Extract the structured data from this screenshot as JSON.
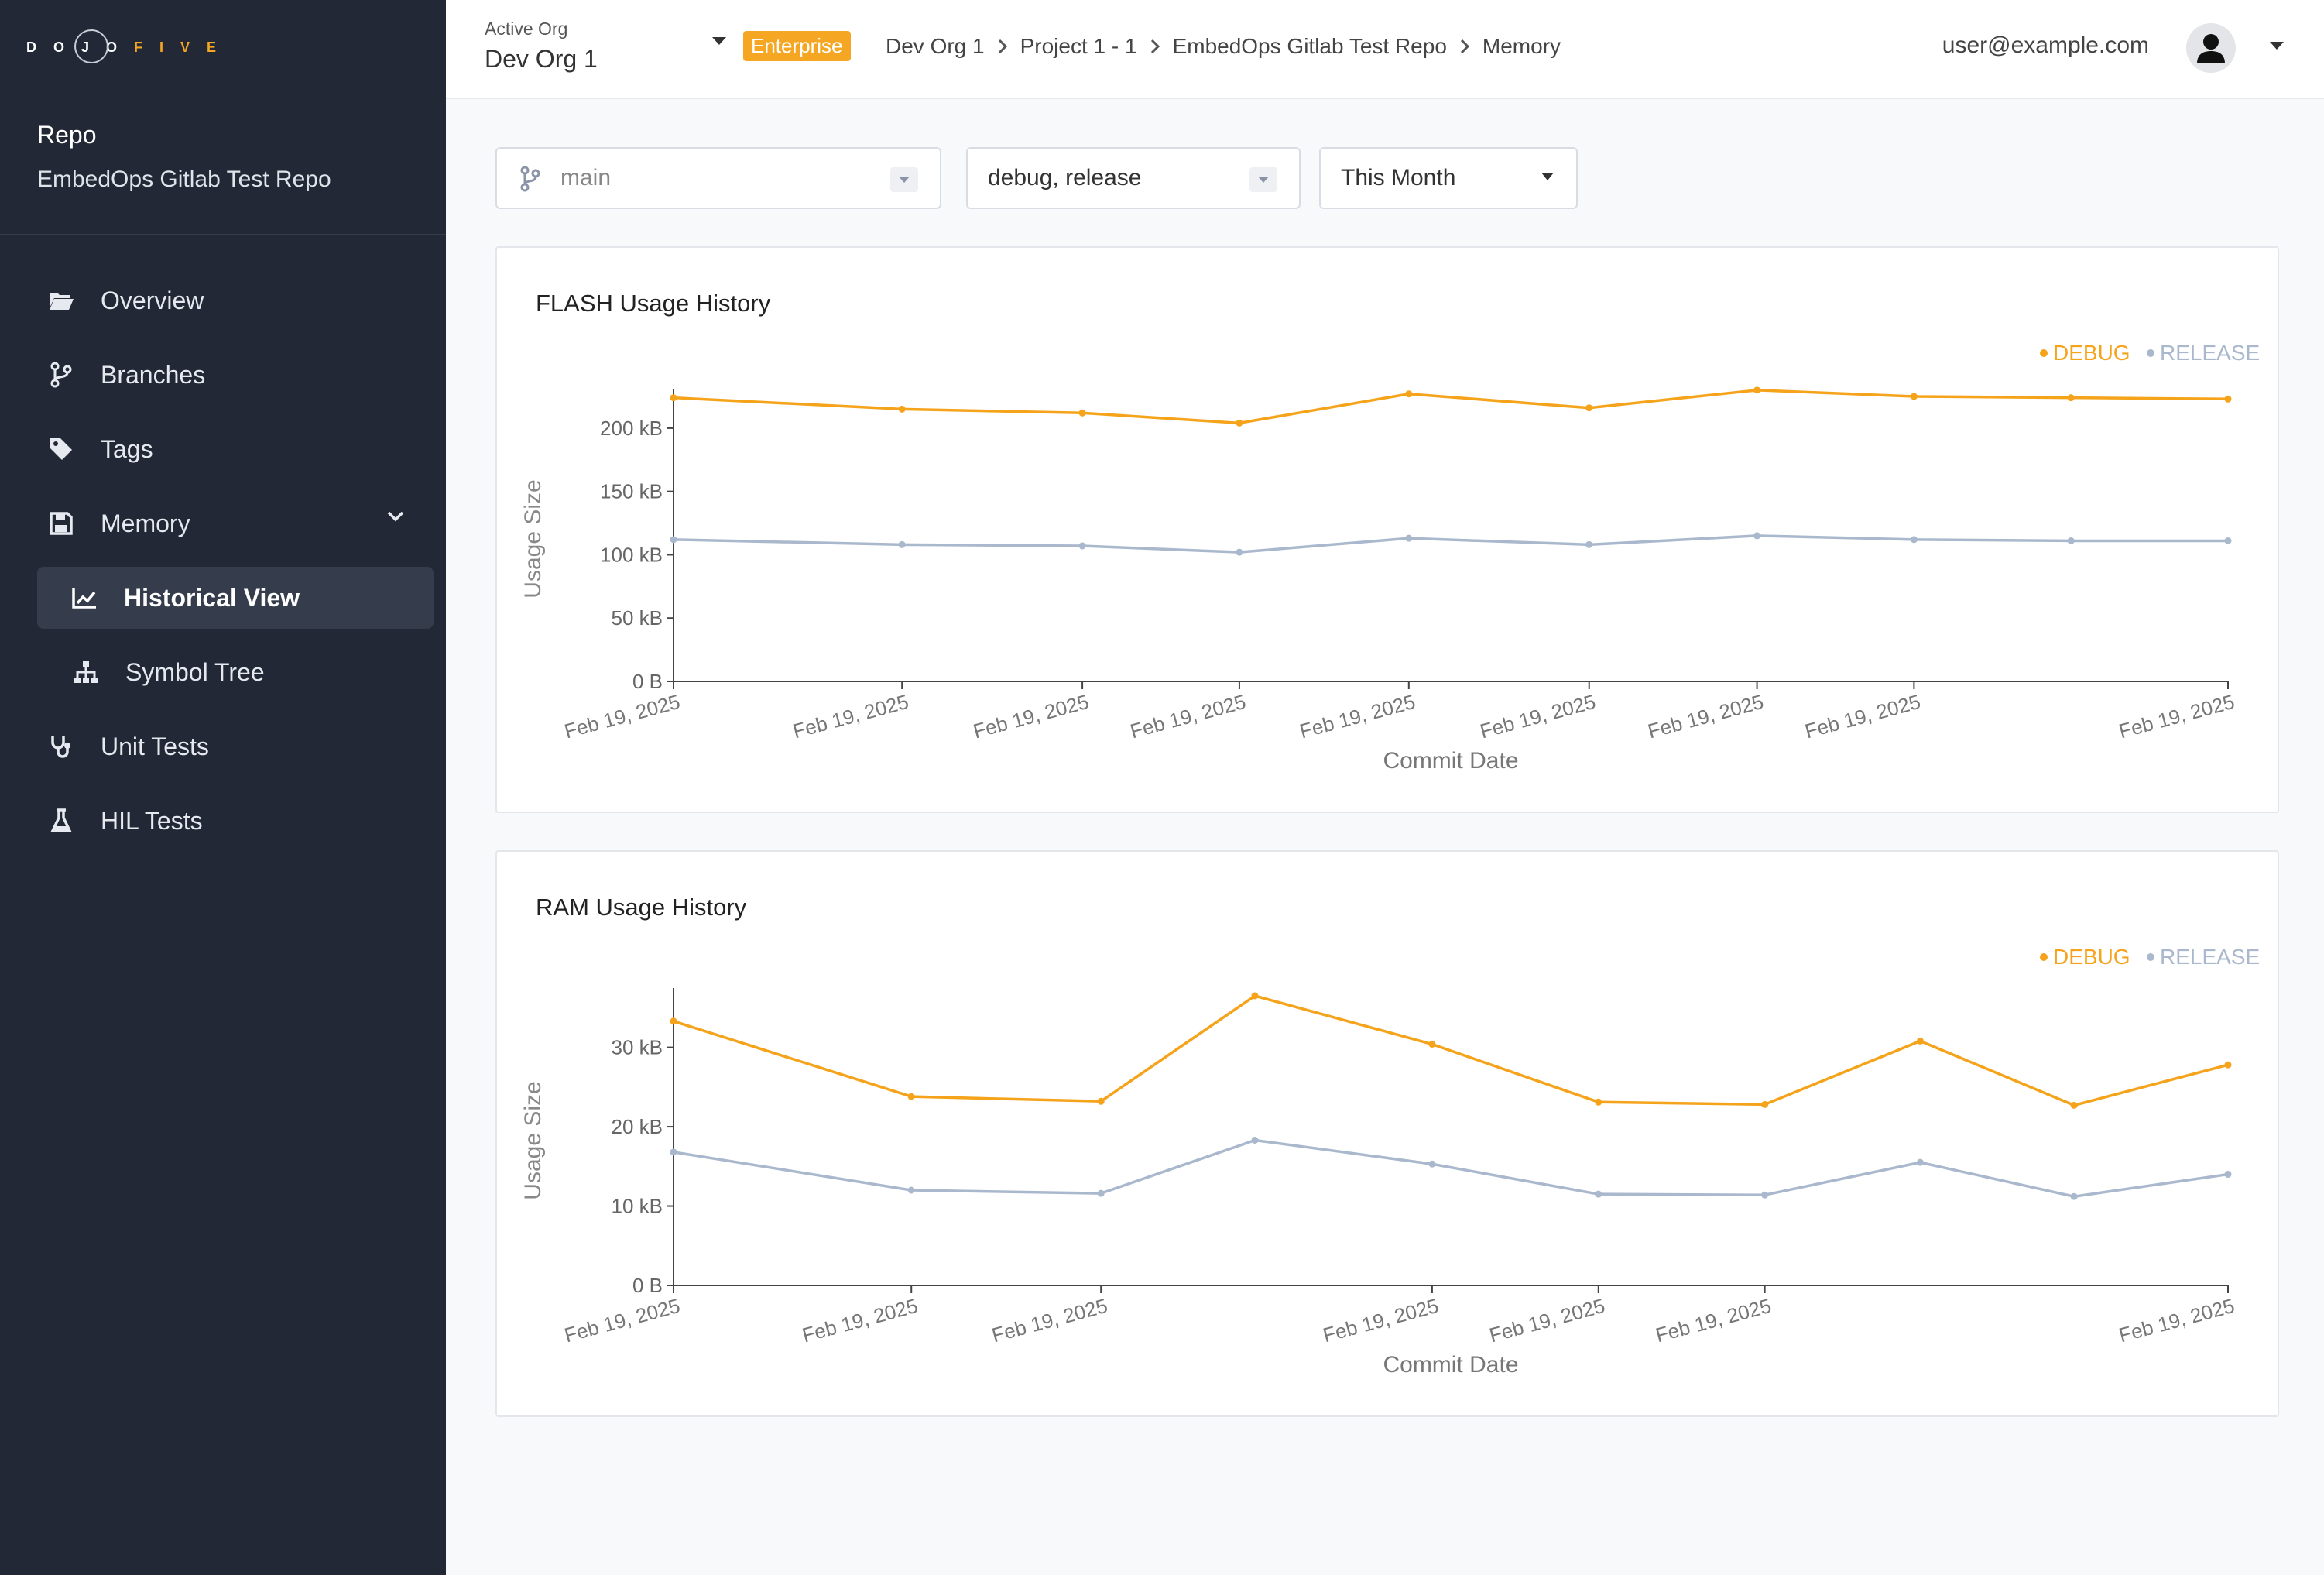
{
  "brand": {
    "left": "DOJO",
    "right": "FIVE"
  },
  "sidebar": {
    "section_title": "Repo",
    "repo_name": "EmbedOps Gitlab Test Repo",
    "items": [
      {
        "label": "Overview",
        "icon": "folder-open-icon"
      },
      {
        "label": "Branches",
        "icon": "code-branch-icon"
      },
      {
        "label": "Tags",
        "icon": "tag-icon"
      },
      {
        "label": "Memory",
        "icon": "floppy-disk-icon"
      },
      {
        "label": "Historical View",
        "icon": "chart-line-icon"
      },
      {
        "label": "Symbol Tree",
        "icon": "sitemap-icon"
      },
      {
        "label": "Unit Tests",
        "icon": "stethoscope-icon"
      },
      {
        "label": "HIL Tests",
        "icon": "flask-icon"
      }
    ]
  },
  "header": {
    "active_org_label": "Active Org",
    "active_org": "Dev Org 1",
    "badge": "Enterprise",
    "breadcrumbs": [
      "Dev Org 1",
      "Project 1 - 1",
      "EmbedOps Gitlab Test Repo",
      "Memory"
    ],
    "user_email": "user@example.com"
  },
  "filters": {
    "branch": "main",
    "builds": "debug, release",
    "range": "This Month"
  },
  "colors": {
    "debug": "#f5a31a",
    "release": "#a9b8cc",
    "sidebar": "#222835",
    "accent": "#f5a623"
  },
  "chart_data": [
    {
      "type": "line",
      "title": "FLASH Usage History",
      "xlabel": "Commit Date",
      "ylabel": "Usage Size",
      "x_positions": [
        0,
        0.147,
        0.263,
        0.364,
        0.473,
        0.589,
        0.697,
        0.798,
        0.899,
        1.0
      ],
      "tick_labels": [
        "Feb 19, 2025",
        "Feb 19, 2025",
        "Feb 19, 2025",
        "Feb 19, 2025",
        "Feb 19, 2025",
        "Feb 19, 2025",
        "Feb 19, 2025",
        "Feb 19, 2025",
        "",
        "Feb 19, 2025"
      ],
      "y_ticks": [
        0,
        50,
        100,
        150,
        200
      ],
      "y_tick_labels": [
        "0 B",
        "50 kB",
        "100 kB",
        "150 kB",
        "200 kB"
      ],
      "ylim": [
        0,
        225
      ],
      "legend_position": "top-right",
      "series": [
        {
          "name": "DEBUG",
          "values": [
            224,
            215,
            212,
            204,
            227,
            216,
            230,
            225,
            224,
            223
          ]
        },
        {
          "name": "RELEASE",
          "values": [
            112,
            108,
            107,
            102,
            113,
            108,
            115,
            112,
            111,
            111
          ]
        }
      ]
    },
    {
      "type": "line",
      "title": "RAM Usage History",
      "xlabel": "Commit Date",
      "ylabel": "Usage Size",
      "x_positions": [
        0,
        0.153,
        0.275,
        0.374,
        0.488,
        0.595,
        0.702,
        0.802,
        0.901,
        1.0
      ],
      "tick_labels": [
        "Feb 19, 2025",
        "Feb 19, 2025",
        "Feb 19, 2025",
        "",
        "Feb 19, 2025",
        "Feb 19, 2025",
        "Feb 19, 2025",
        "",
        "",
        "Feb 19, 2025"
      ],
      "y_ticks": [
        0,
        10,
        20,
        30
      ],
      "y_tick_labels": [
        "0 B",
        "10 kB",
        "20 kB",
        "30 kB"
      ],
      "ylim": [
        0,
        36.5
      ],
      "legend_position": "top-right",
      "series": [
        {
          "name": "DEBUG",
          "values": [
            33.3,
            23.8,
            23.2,
            36.5,
            30.4,
            23.1,
            22.8,
            30.8,
            22.7,
            27.8
          ]
        },
        {
          "name": "RELEASE",
          "values": [
            16.8,
            12.0,
            11.6,
            18.3,
            15.3,
            11.5,
            11.4,
            15.5,
            11.2,
            14.0
          ]
        }
      ]
    }
  ]
}
